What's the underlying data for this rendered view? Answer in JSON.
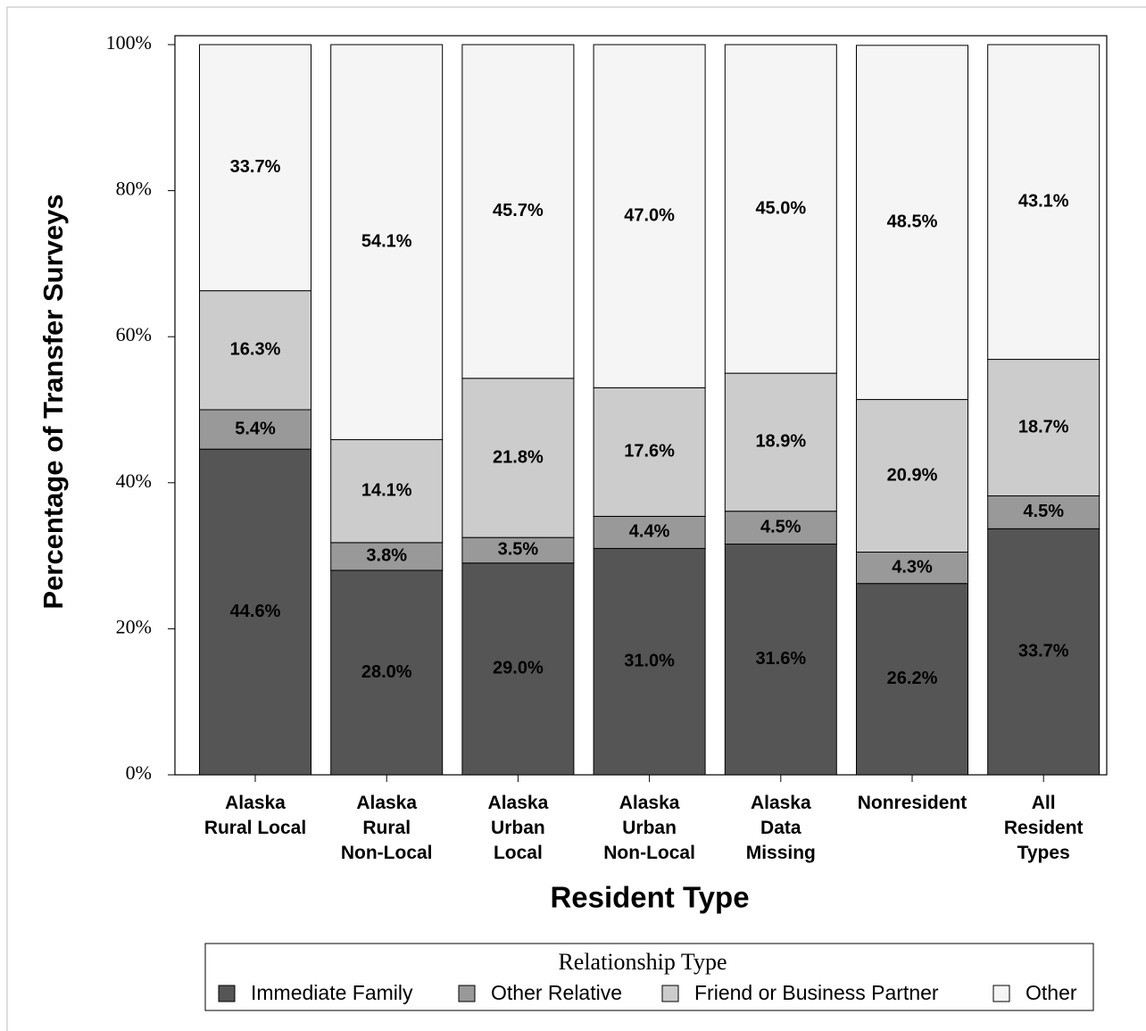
{
  "chart_data": {
    "type": "stacked_bar",
    "y_label": "Percentage of Transfer Surveys",
    "x_label": "Resident Type",
    "legend_title": "Relationship Type",
    "categories": [
      "Alaska\nRural Local",
      "Alaska\nRural\nNon-Local",
      "Alaska\nUrban\nLocal",
      "Alaska\nUrban\nNon-Local",
      "Alaska\nData\nMissing",
      "Nonresident",
      "All\nResident\nTypes"
    ],
    "series": [
      {
        "name": "Immediate Family",
        "color": "#555555",
        "values": [
          44.6,
          28.0,
          29.0,
          31.0,
          31.6,
          26.2,
          33.7
        ],
        "value_labels": [
          "44.6%",
          "28.0%",
          "29.0%",
          "31.0%",
          "31.6%",
          "26.2%",
          "33.7%"
        ]
      },
      {
        "name": "Other Relative",
        "color": "#999999",
        "values": [
          5.4,
          3.8,
          3.5,
          4.4,
          4.5,
          4.3,
          4.5
        ],
        "value_labels": [
          "5.4%",
          "3.8%",
          "3.5%",
          "4.4%",
          "4.5%",
          "4.3%",
          "4.5%"
        ]
      },
      {
        "name": "Friend or Business Partner",
        "color": "#cccccc",
        "values": [
          16.3,
          14.1,
          21.8,
          17.6,
          18.9,
          20.9,
          18.7
        ],
        "value_labels": [
          "16.3%",
          "14.1%",
          "21.8%",
          "17.6%",
          "18.9%",
          "20.9%",
          "18.7%"
        ]
      },
      {
        "name": "Other",
        "color": "#f5f5f5",
        "values": [
          33.7,
          54.1,
          45.7,
          47.0,
          45.0,
          48.5,
          43.1
        ],
        "value_labels": [
          "33.7%",
          "54.1%",
          "45.7%",
          "47.0%",
          "45.0%",
          "48.5%",
          "43.1%"
        ]
      }
    ],
    "ylim": [
      0,
      100
    ],
    "yticks": [
      {
        "value": 0,
        "label": "0%"
      },
      {
        "value": 20,
        "label": "20%"
      },
      {
        "value": 40,
        "label": "40%"
      },
      {
        "value": 60,
        "label": "60%"
      },
      {
        "value": 80,
        "label": "80%"
      },
      {
        "value": 100,
        "label": "100%"
      }
    ]
  }
}
